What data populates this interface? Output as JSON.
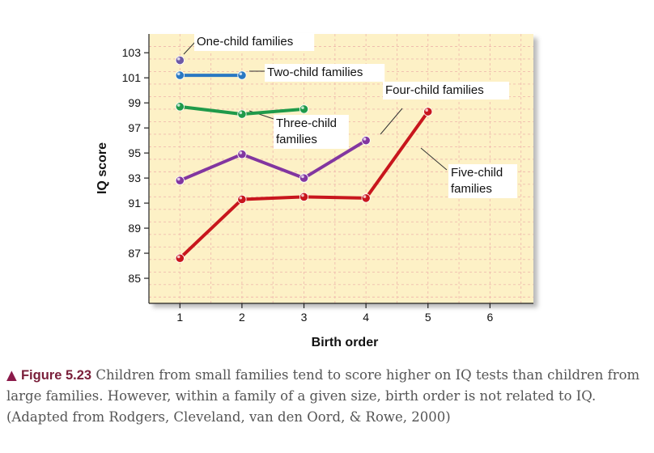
{
  "chart_data": {
    "type": "line",
    "xlabel": "Birth order",
    "ylabel": "IQ score",
    "x_ticks": [
      1,
      2,
      3,
      4,
      5,
      6
    ],
    "x_tick_labels": [
      "1",
      "2",
      "3",
      "4",
      "5",
      "6"
    ],
    "y_ticks": [
      85,
      87,
      89,
      91,
      93,
      95,
      97,
      99,
      101,
      103
    ],
    "y_tick_labels": [
      "85",
      "87",
      "89",
      "91",
      "93",
      "95",
      "97",
      "99",
      "101",
      "103"
    ],
    "xlim": [
      0.5,
      6.7
    ],
    "ylim": [
      83,
      104.5
    ],
    "grid": true,
    "background": "#fdf1c6",
    "series": [
      {
        "name": "One-child families",
        "color": "#6e5aa6",
        "x": [
          1
        ],
        "y": [
          102.4
        ]
      },
      {
        "name": "Two-child families",
        "color": "#2a78c2",
        "x": [
          1,
          2
        ],
        "y": [
          101.2,
          101.2
        ]
      },
      {
        "name": "Three-child families",
        "color": "#1f9a4a",
        "x": [
          1,
          2,
          3
        ],
        "y": [
          98.7,
          98.1,
          98.5
        ]
      },
      {
        "name": "Four-child families",
        "color": "#8236a0",
        "x": [
          1,
          2,
          3,
          4
        ],
        "y": [
          92.8,
          94.9,
          93.0,
          96.0
        ]
      },
      {
        "name": "Five-child families",
        "color": "#c8161d",
        "x": [
          1,
          2,
          3,
          4,
          5
        ],
        "y": [
          86.6,
          91.3,
          91.5,
          91.4,
          98.3
        ]
      }
    ],
    "annotations": [
      {
        "series": 0,
        "lines": [
          "One-child families"
        ]
      },
      {
        "series": 1,
        "lines": [
          "Two-child families"
        ]
      },
      {
        "series": 2,
        "lines": [
          "Three-child",
          "families"
        ]
      },
      {
        "series": 3,
        "lines": [
          "Four-child families"
        ]
      },
      {
        "series": 4,
        "lines": [
          "Five-child",
          "families"
        ]
      }
    ]
  },
  "caption": {
    "figure_label": "Figure 5.23",
    "text": "Children from small families tend to score higher on IQ tests than children from large families. However, within a family of a given size, birth order is not related to IQ. (Adapted from Rodgers, Cleveland, van den Oord, & Rowe, 2000)"
  }
}
